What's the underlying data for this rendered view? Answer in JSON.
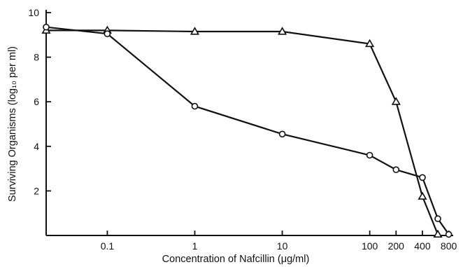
{
  "chart_data": {
    "type": "line",
    "title": "",
    "xlabel": "Concentration of Nafcillin (μg/ml)",
    "ylabel": "Surviving Organisms (log₁₀ per ml)",
    "x_scale": "log",
    "x_ticks": [
      0.1,
      1,
      10,
      100,
      200,
      400,
      800
    ],
    "x_tick_labels": [
      "0.1",
      "1",
      "10",
      "100",
      "200",
      "400",
      "800"
    ],
    "y_ticks": [
      2,
      4,
      6,
      8,
      10
    ],
    "y_tick_labels": [
      "2",
      "4",
      "6",
      "8",
      "10"
    ],
    "ylim": [
      0,
      10
    ],
    "xlim": [
      0.02,
      900
    ],
    "grid": false,
    "series": [
      {
        "marker": "triangle",
        "x": [
          0.02,
          0.1,
          1,
          10,
          100,
          200,
          400,
          600
        ],
        "y": [
          9.2,
          9.2,
          9.15,
          9.15,
          8.6,
          6.0,
          1.75,
          0.05
        ]
      },
      {
        "marker": "circle",
        "x": [
          0.02,
          0.1,
          1,
          10,
          100,
          200,
          400,
          600,
          800
        ],
        "y": [
          9.35,
          9.05,
          5.8,
          4.55,
          3.6,
          2.95,
          2.6,
          0.75,
          0.05
        ]
      }
    ]
  }
}
